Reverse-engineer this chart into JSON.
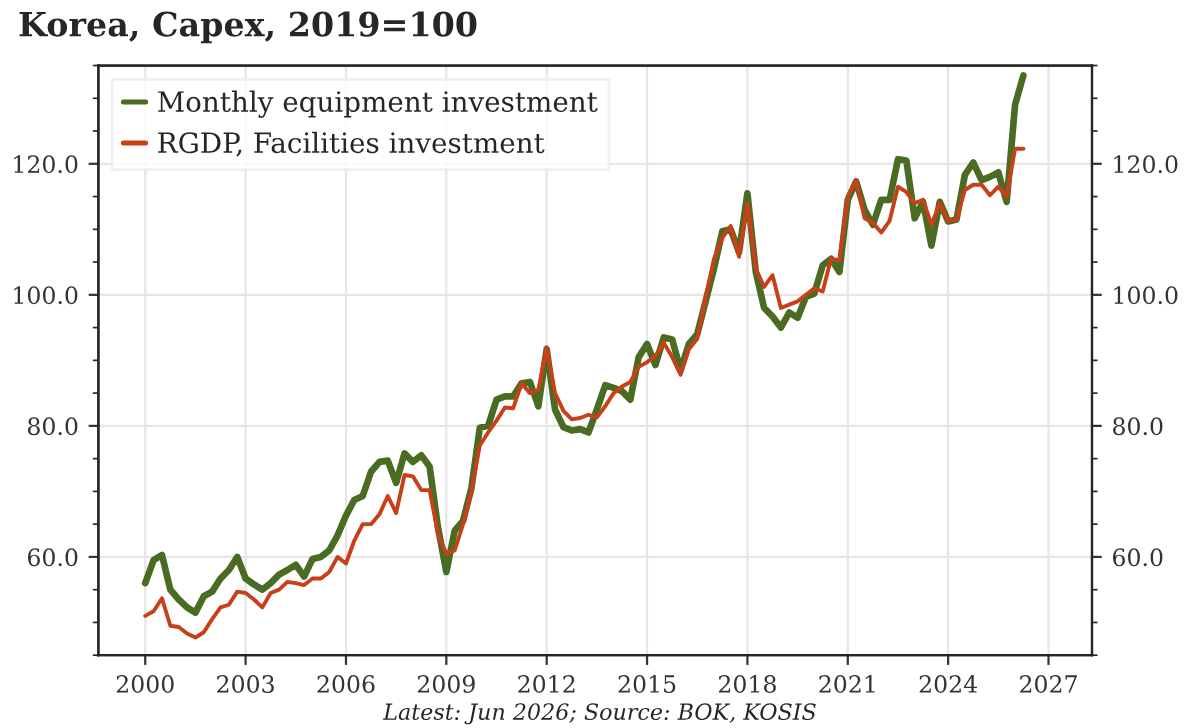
{
  "chart_data": {
    "type": "line",
    "title": "Korea, Capex, 2019=100",
    "x": [
      2000.0,
      2000.25,
      2000.5,
      2000.75,
      2001.0,
      2001.25,
      2001.5,
      2001.75,
      2002.0,
      2002.25,
      2002.5,
      2002.75,
      2003.0,
      2003.25,
      2003.5,
      2003.75,
      2004.0,
      2004.25,
      2004.5,
      2004.75,
      2005.0,
      2005.25,
      2005.5,
      2005.75,
      2006.0,
      2006.25,
      2006.5,
      2006.75,
      2007.0,
      2007.25,
      2007.5,
      2007.75,
      2008.0,
      2008.25,
      2008.5,
      2008.75,
      2009.0,
      2009.25,
      2009.5,
      2009.75,
      2010.0,
      2010.25,
      2010.5,
      2010.75,
      2011.0,
      2011.25,
      2011.5,
      2011.75,
      2012.0,
      2012.25,
      2012.5,
      2012.75,
      2013.0,
      2013.25,
      2013.5,
      2013.75,
      2014.0,
      2014.25,
      2014.5,
      2014.75,
      2015.0,
      2015.25,
      2015.5,
      2015.75,
      2016.0,
      2016.25,
      2016.5,
      2016.75,
      2017.0,
      2017.25,
      2017.5,
      2017.75,
      2018.0,
      2018.25,
      2018.5,
      2018.75,
      2019.0,
      2019.25,
      2019.5,
      2019.75,
      2020.0,
      2020.25,
      2020.5,
      2020.75,
      2021.0,
      2021.25,
      2021.5,
      2021.75,
      2022.0,
      2022.25,
      2022.5,
      2022.75,
      2023.0,
      2023.25,
      2023.5,
      2023.75,
      2024.0,
      2024.25,
      2024.5,
      2024.75,
      2025.0,
      2025.25,
      2025.5,
      2025.75,
      2026.0,
      2026.25
    ],
    "series": [
      {
        "name": "Monthly equipment investment",
        "color": "#4a6b22",
        "values": [
          56.0,
          59.5,
          60.3,
          55,
          53.5,
          52.3,
          51.5,
          54,
          54.7,
          56.7,
          58,
          60,
          56.7,
          55.8,
          55,
          56,
          57.3,
          58,
          58.8,
          57,
          59.7,
          60,
          61,
          63.3,
          66.3,
          68.7,
          69.3,
          73,
          74.5,
          74.7,
          71.3,
          75.8,
          74.5,
          75.5,
          73.8,
          64.5,
          57.7,
          64,
          65.5,
          70.5,
          79.7,
          80,
          84,
          84.5,
          84.5,
          86.5,
          86.7,
          83,
          91.7,
          82.5,
          79.8,
          79.3,
          79.5,
          79,
          82.5,
          86.2,
          85.8,
          85.3,
          84,
          90.5,
          92.5,
          89.3,
          93.5,
          93.2,
          88.5,
          92.5,
          94,
          99,
          104,
          109.7,
          110,
          106.5,
          115.5,
          103.5,
          98,
          96.7,
          95,
          97.3,
          96.5,
          99.7,
          100.2,
          104.5,
          105.5,
          103.5,
          114.5,
          117.3,
          113,
          110.7,
          114.5,
          114.5,
          120.7,
          120.5,
          111.7,
          114.2,
          107.5,
          114.2,
          111.2,
          111.5,
          118.3,
          120.2,
          117.5,
          118,
          118.7,
          114.2,
          129,
          133.5
        ]
      },
      {
        "name": "RGDP, Facilities investment",
        "color": "#c8401a",
        "values": [
          51,
          51.7,
          53.7,
          49.5,
          49.3,
          48.3,
          47.7,
          48.5,
          50.5,
          52.3,
          52.7,
          54.7,
          54.5,
          53.5,
          52.3,
          54.5,
          55,
          56.2,
          56,
          55.7,
          56.7,
          56.7,
          57.7,
          60,
          59,
          62.5,
          65,
          65,
          66.5,
          69.3,
          66.7,
          72.5,
          72.3,
          70.2,
          70.2,
          63.5,
          60.5,
          61,
          65,
          70,
          77,
          79,
          80.8,
          82.8,
          82.7,
          86.5,
          85,
          85.5,
          92,
          85,
          82.3,
          81,
          81.2,
          81.7,
          81.3,
          83,
          85,
          86,
          86.7,
          89,
          89.7,
          90.7,
          92.7,
          90.5,
          87.8,
          91.7,
          93.3,
          99.5,
          105.5,
          108.7,
          110.5,
          105.8,
          114,
          104,
          101.2,
          103,
          98,
          98.5,
          99,
          100,
          101,
          100.5,
          105.5,
          105.3,
          115,
          117.5,
          111.7,
          111,
          109.5,
          111.3,
          116.5,
          115.7,
          114,
          114.5,
          110.7,
          114,
          111.3,
          111.5,
          116,
          116.8,
          116.8,
          115.2,
          116.5,
          115,
          122.3,
          122.3
        ]
      }
    ],
    "xlim": [
      1998.6,
      2028.3
    ],
    "xticks": [
      2000,
      2003,
      2006,
      2009,
      2012,
      2015,
      2018,
      2021,
      2024,
      2027
    ],
    "ylim": [
      45,
      135
    ],
    "yticks": [
      {
        "value": 60,
        "label": "60.0"
      },
      {
        "value": 80,
        "label": "80.0"
      },
      {
        "value": 100,
        "label": "100.0"
      },
      {
        "value": 120,
        "label": "120.0"
      }
    ],
    "y2lim": [
      45,
      135
    ],
    "y2ticks": [
      {
        "value": 60,
        "label": "60.0"
      },
      {
        "value": 80,
        "label": "80.0"
      },
      {
        "value": 100,
        "label": "100.0"
      },
      {
        "value": 120,
        "label": "120.0"
      }
    ],
    "annotations": [
      "Latest: Jun 2026; Source: BOK, KOSIS"
    ],
    "grid": true,
    "legend": "top left",
    "line_style": "solid",
    "marker": "none"
  }
}
